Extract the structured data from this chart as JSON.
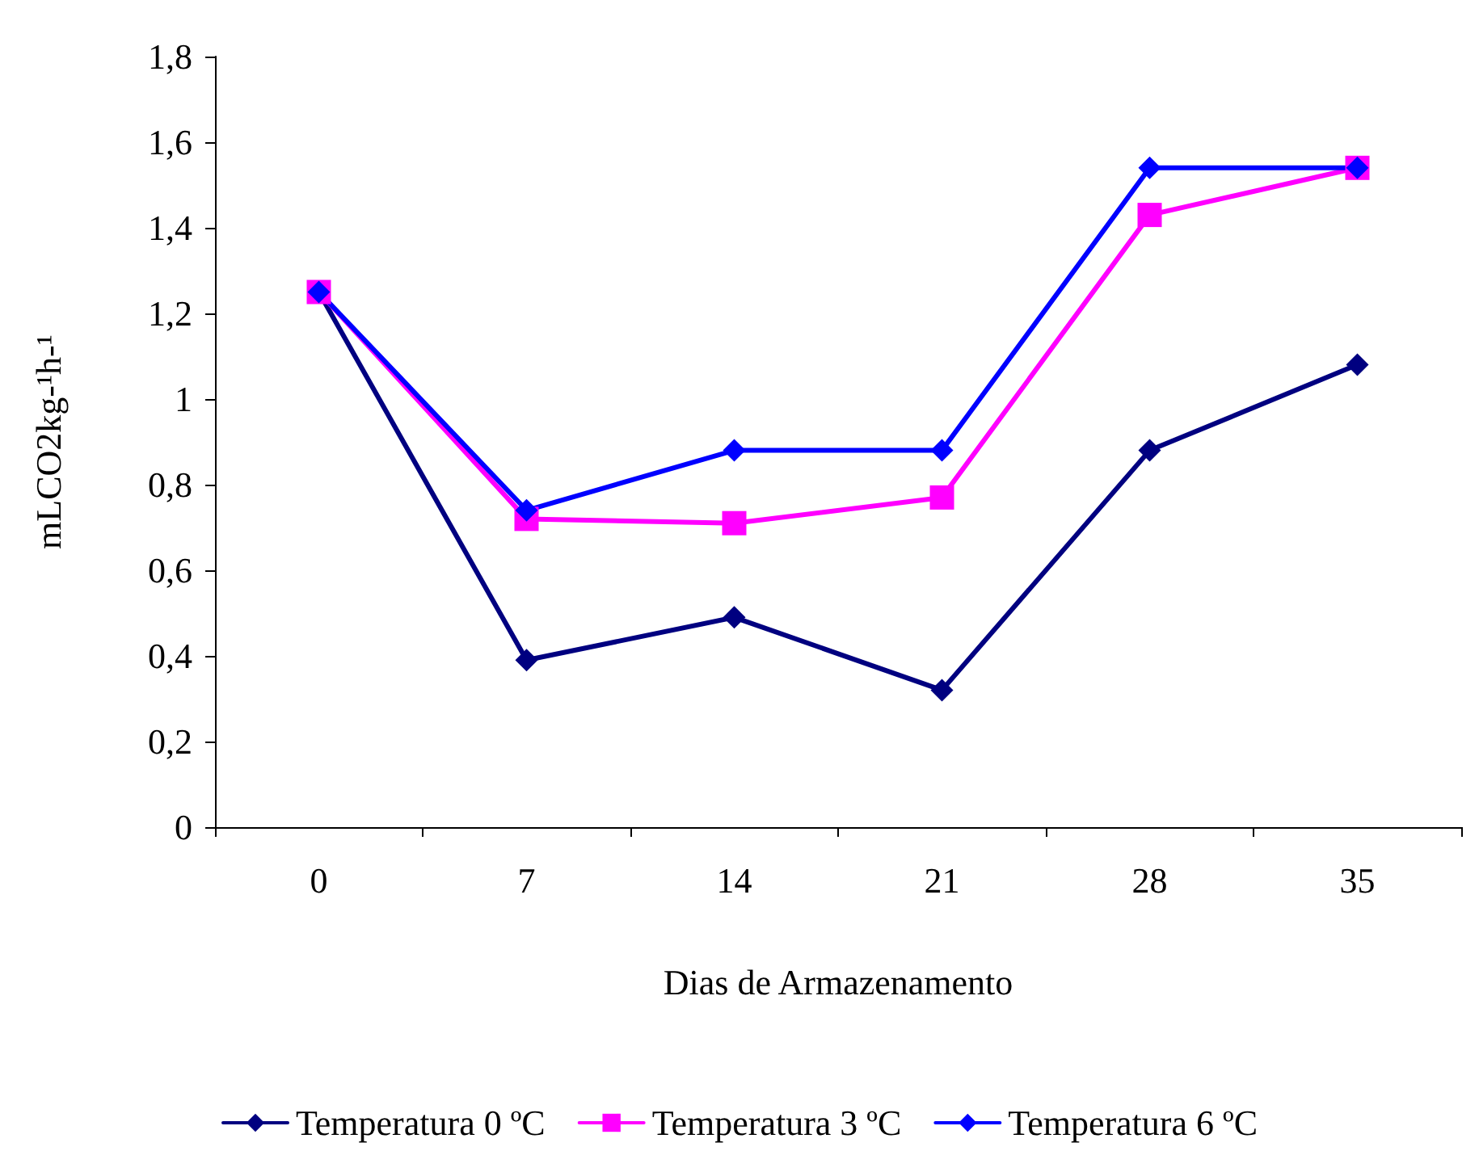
{
  "chart_data": {
    "type": "line",
    "xlabel": "Dias de Armazenamento",
    "ylabel": "mLCO2kg-¹h-¹",
    "categories": [
      "0",
      "7",
      "14",
      "21",
      "28",
      "35"
    ],
    "series": [
      {
        "name": "Temperatura 0 ºC",
        "color": "#000080",
        "marker": "diamond",
        "values": [
          1.25,
          0.39,
          0.49,
          0.32,
          0.88,
          1.08
        ]
      },
      {
        "name": "Temperatura 3 ºC",
        "color": "#ff00ff",
        "marker": "square",
        "values": [
          1.25,
          0.72,
          0.71,
          0.77,
          1.43,
          1.54
        ]
      },
      {
        "name": "Temperatura 6 ºC",
        "color": "#0000ff",
        "marker": "diamond",
        "values": [
          1.25,
          0.74,
          0.88,
          0.88,
          1.54,
          1.54
        ]
      }
    ],
    "ylim": [
      0,
      1.8
    ],
    "yticks": [
      0,
      {
        "value": 0.2,
        "label": "0,2"
      },
      {
        "value": 0.4,
        "label": "0,4"
      },
      {
        "value": 0.6,
        "label": "0,6"
      },
      {
        "value": 0.8,
        "label": "0,8"
      },
      1,
      {
        "value": 1.2,
        "label": "1,2"
      },
      {
        "value": 1.4,
        "label": "1,4"
      },
      {
        "value": 1.6,
        "label": "1,6"
      },
      {
        "value": 1.8,
        "label": "1,8"
      }
    ],
    "grid": false,
    "legend": "bottom",
    "line_style": "solid"
  }
}
